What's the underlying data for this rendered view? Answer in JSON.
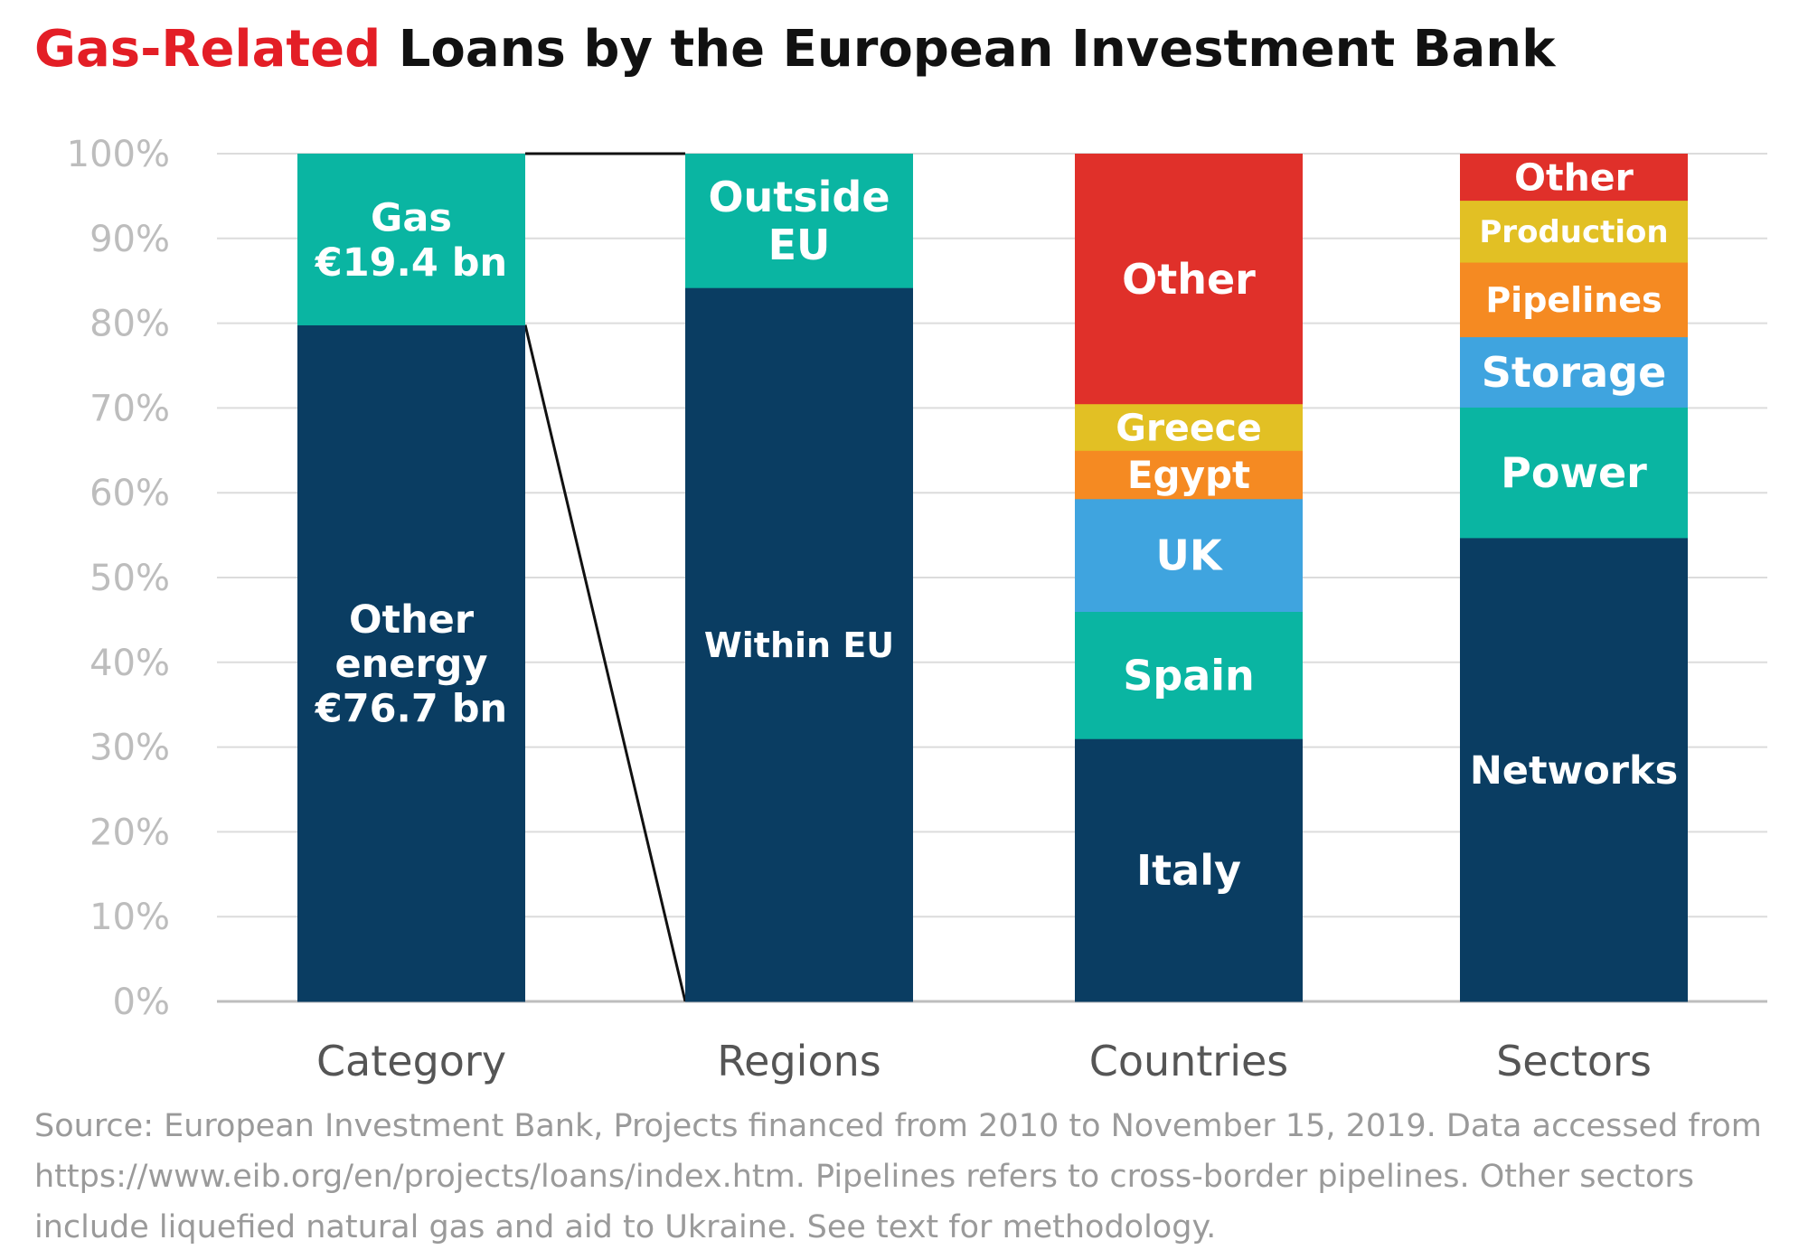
{
  "title": {
    "highlight": "Gas-Related",
    "rest": " Loans by the European Investment Bank"
  },
  "source": "Source: European Investment Bank, Projects financed from 2010 to November 15, 2019. Data accessed from https://www.eib.org/en/projects/loans/index.htm. Pipelines refers to cross-border pipelines. Other sectors include liquefied natural gas and aid to Ukraine. See text for methodology.",
  "colors": {
    "navy": "#0a3d62",
    "teal": "#0ab5a2",
    "blue": "#3fa4df",
    "orange": "#f58a22",
    "yellow": "#e2c024",
    "red": "#e0302a",
    "highlight": "#e31e26"
  },
  "chart_data": {
    "type": "bar",
    "stacked": true,
    "ylim": [
      0,
      100
    ],
    "y_ticks": [
      "0%",
      "10%",
      "20%",
      "30%",
      "40%",
      "50%",
      "60%",
      "70%",
      "80%",
      "90%",
      "100%"
    ],
    "categories": [
      "Category",
      "Regions",
      "Countries",
      "Sectors"
    ],
    "grid": true,
    "bars": [
      {
        "category": "Category",
        "segments": [
          {
            "label": [
              "Other",
              "energy",
              "€76.7 bn"
            ],
            "value": 79.8,
            "color": "navy"
          },
          {
            "label": [
              "Gas",
              "€19.4 bn"
            ],
            "value": 20.2,
            "color": "teal"
          }
        ]
      },
      {
        "category": "Regions",
        "segments": [
          {
            "label": [
              "Within EU"
            ],
            "value": 84.2,
            "color": "navy"
          },
          {
            "label": [
              "Outside",
              "EU"
            ],
            "value": 15.8,
            "color": "teal"
          }
        ]
      },
      {
        "category": "Countries",
        "segments": [
          {
            "label": [
              "Italy"
            ],
            "value": 31,
            "color": "navy"
          },
          {
            "label": [
              "Spain"
            ],
            "value": 15,
            "color": "teal"
          },
          {
            "label": [
              "UK"
            ],
            "value": 13.3,
            "color": "blue"
          },
          {
            "label": [
              "Egypt"
            ],
            "value": 5.7,
            "color": "orange"
          },
          {
            "label": [
              "Greece"
            ],
            "value": 5.5,
            "color": "yellow"
          },
          {
            "label": [
              "Other"
            ],
            "value": 29.5,
            "color": "red"
          }
        ]
      },
      {
        "category": "Sectors",
        "segments": [
          {
            "label": [
              "Networks"
            ],
            "value": 54.7,
            "color": "navy"
          },
          {
            "label": [
              "Power"
            ],
            "value": 15.4,
            "color": "teal"
          },
          {
            "label": [
              "Storage"
            ],
            "value": 8.3,
            "color": "blue"
          },
          {
            "label": [
              "Pipelines"
            ],
            "value": 8.8,
            "color": "orange"
          },
          {
            "label": [
              "Production"
            ],
            "value": 7.3,
            "color": "yellow"
          },
          {
            "label": [
              "Other"
            ],
            "value": 5.5,
            "color": "red"
          }
        ]
      }
    ]
  }
}
